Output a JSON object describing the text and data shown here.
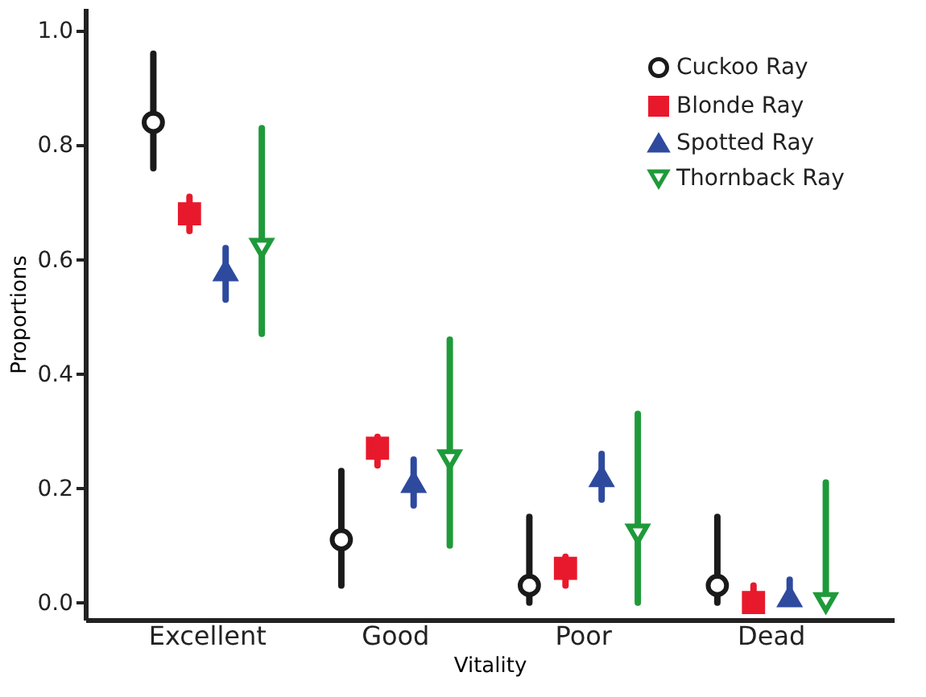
{
  "chart_data": {
    "type": "scatter",
    "xlabel": "Vitality",
    "ylabel": "Proportions",
    "categories": [
      "Excellent",
      "Good",
      "Poor",
      "Dead"
    ],
    "ylim": [
      -0.03,
      1.04
    ],
    "yticks": [
      {
        "value": 0,
        "label": "0.0"
      },
      {
        "value": 0.2,
        "label": "0.2"
      },
      {
        "value": 0.4,
        "label": "0.4"
      },
      {
        "value": 0.6,
        "label": "0.6"
      },
      {
        "value": 0.8,
        "label": "0.8"
      },
      {
        "value": 1,
        "label": "1.0"
      }
    ],
    "grid": false,
    "legend": "top right",
    "series": [
      {
        "name": "Cuckoo Ray",
        "color": "#1a1a1a",
        "marker": "circle",
        "values": [
          0.84,
          0.11,
          0.03,
          0.03
        ],
        "errors": [
          [
            0.76,
            0.96
          ],
          [
            0.03,
            0.23
          ],
          [
            0.0,
            0.15
          ],
          [
            0.0,
            0.15
          ]
        ]
      },
      {
        "name": "Blonde Ray",
        "color": "#e8192c",
        "marker": "square",
        "values": [
          0.68,
          0.27,
          0.06,
          0.0
        ],
        "errors": [
          [
            0.65,
            0.71
          ],
          [
            0.24,
            0.29
          ],
          [
            0.03,
            0.08
          ],
          [
            0.0,
            0.03
          ]
        ]
      },
      {
        "name": "Spotted Ray",
        "color": "#2e4a9e",
        "marker": "triangle",
        "values": [
          0.58,
          0.21,
          0.22,
          0.01
        ],
        "errors": [
          [
            0.53,
            0.62
          ],
          [
            0.17,
            0.25
          ],
          [
            0.18,
            0.26
          ],
          [
            0.01,
            0.04
          ]
        ]
      },
      {
        "name": "Thornback Ray",
        "color": "#1f9a3a",
        "marker": "triangle-down",
        "values": [
          0.62,
          0.25,
          0.12,
          0.0
        ],
        "errors": [
          [
            0.47,
            0.83
          ],
          [
            0.1,
            0.46
          ],
          [
            0.0,
            0.33
          ],
          [
            0.0,
            0.21
          ]
        ]
      }
    ]
  }
}
